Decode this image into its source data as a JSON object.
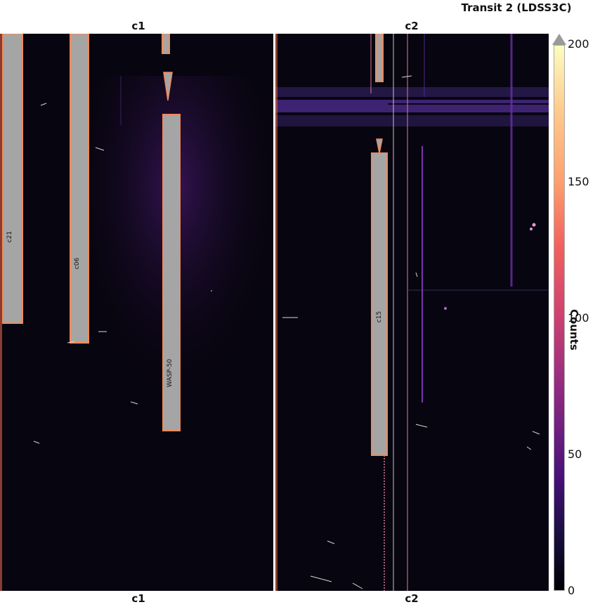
{
  "title": "Transit 2 (LDSS3C)",
  "panels": {
    "left_top": "c1",
    "right_top": "c2",
    "left_bottom": "c1",
    "right_bottom": "c2"
  },
  "objects": {
    "c21": "c21",
    "c06": "c06",
    "wasp50": "WASP-50",
    "c15": "c15"
  },
  "colorbar": {
    "label": "Counts",
    "ticks": [
      "200",
      "150",
      "100",
      "50",
      "0"
    ],
    "range": [
      0,
      200
    ],
    "colormap": "magma",
    "extend": "max"
  }
}
